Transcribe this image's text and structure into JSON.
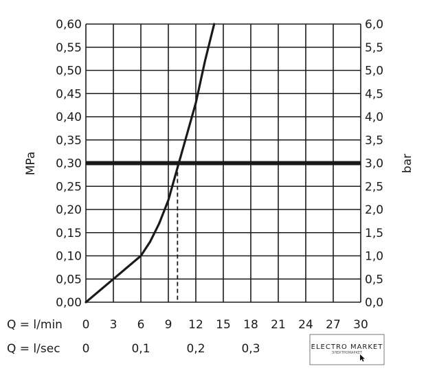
{
  "chart_data": {
    "type": "line",
    "ylabel_left": "MPa",
    "ylabel_right": "bar",
    "left_axis": {
      "min": 0,
      "max": 0.6,
      "ticks": [
        "0,00",
        "0,05",
        "0,10",
        "0,15",
        "0,20",
        "0,25",
        "0,30",
        "0,35",
        "0,40",
        "0,45",
        "0,50",
        "0,55",
        "0,60"
      ]
    },
    "right_axis": {
      "min": 0,
      "max": 6,
      "ticks": [
        "0,0",
        "0,5",
        "1,0",
        "1,5",
        "2,0",
        "2,5",
        "3,0",
        "3,5",
        "4,0",
        "4,5",
        "5,0",
        "5,5",
        "6,0"
      ]
    },
    "x_axis": {
      "min": 0,
      "max": 30,
      "ticks": [
        "0",
        "3",
        "6",
        "9",
        "12",
        "15",
        "18",
        "21",
        "24",
        "27",
        "30"
      ]
    },
    "x_row_label": "Q = l/min",
    "sec_row_label": "Q = l/sec",
    "sec_ticks": [
      {
        "value": 0,
        "label": "0"
      },
      {
        "value": 0.1,
        "label": "0,1"
      },
      {
        "value": 0.2,
        "label": "0,2"
      },
      {
        "value": 0.3,
        "label": "0,3"
      }
    ],
    "grid": true,
    "series": [
      {
        "x": [
          0,
          1.5,
          3,
          4.5,
          6,
          7,
          8,
          9,
          10,
          11,
          12,
          13,
          14
        ],
        "y": [
          0,
          0.025,
          0.05,
          0.075,
          0.1,
          0.13,
          0.17,
          0.22,
          0.29,
          0.36,
          0.43,
          0.52,
          0.6
        ]
      }
    ],
    "reference_line": {
      "y": 0.3
    },
    "marker_x": 10
  },
  "watermark": {
    "title": "ELECTRO MARKET",
    "subtitle": "ЭЛЕКТРОМАРКЕТ"
  }
}
